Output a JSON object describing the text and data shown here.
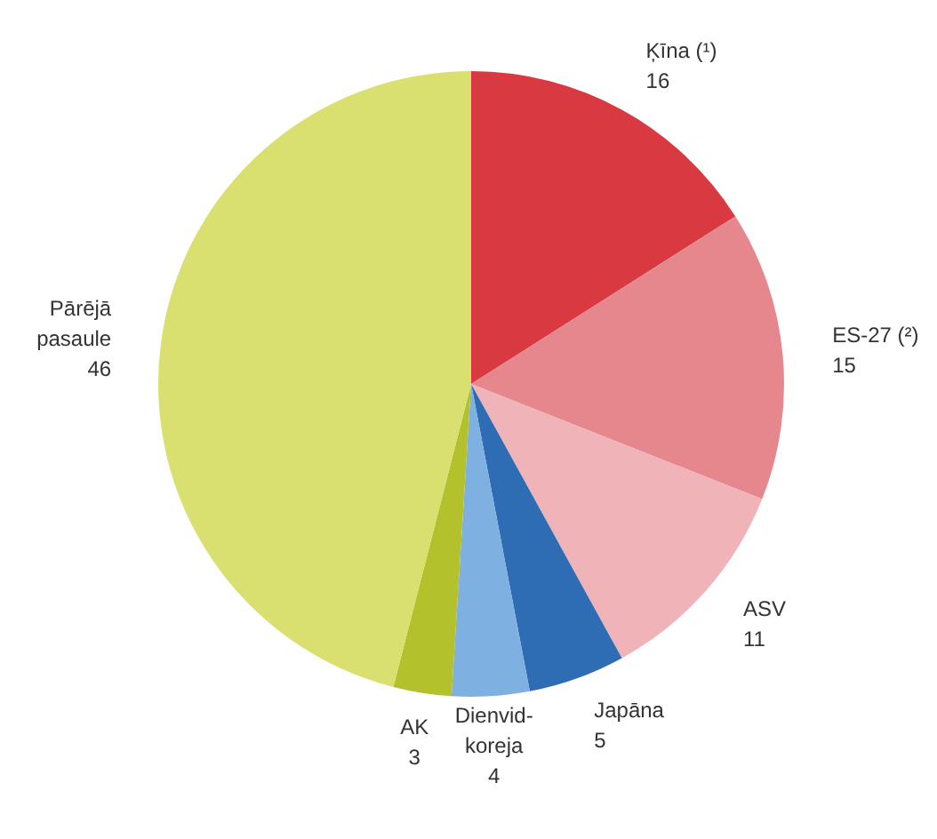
{
  "chart_data": {
    "type": "pie",
    "categories": [
      "Ķīna (¹)",
      "ES-27 (²)",
      "ASV",
      "Japāna",
      "Dienvid-koreja",
      "AK",
      "Pārējā pasaule"
    ],
    "values": [
      16,
      15,
      11,
      5,
      4,
      3,
      46
    ],
    "colors": [
      "#d93a42",
      "#e5878c",
      "#f0b4b8",
      "#2e6db4",
      "#7eb0e2",
      "#b3c22c",
      "#d9e070"
    ],
    "data_labels": true
  }
}
